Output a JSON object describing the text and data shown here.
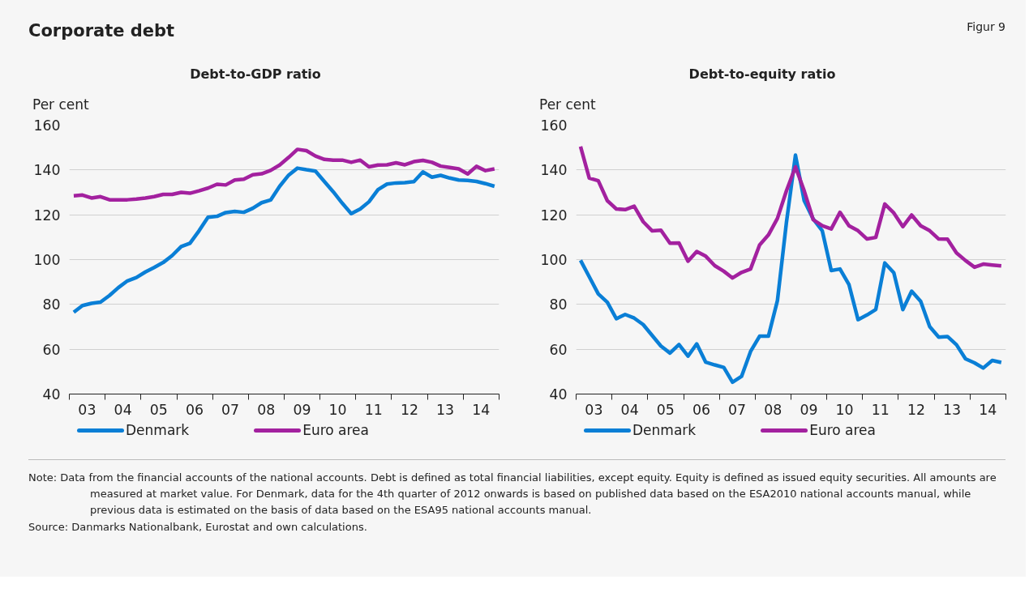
{
  "chart_data": [
    {
      "type": "line",
      "title": "Debt-to-GDP ratio",
      "ylabel": "Per cent",
      "x": [
        "2003-02-15",
        "2003-05-15",
        "2003-08-15",
        "2003-11-15",
        "2004-02-15",
        "2004-05-15",
        "2004-08-15",
        "2004-11-15",
        "2005-02-15",
        "2005-05-15",
        "2005-08-15",
        "2005-11-15",
        "2006-02-15",
        "2006-05-15",
        "2006-08-15",
        "2006-11-15",
        "2007-02-15",
        "2007-05-15",
        "2007-08-15",
        "2007-11-15",
        "2008-02-15",
        "2008-05-15",
        "2008-08-15",
        "2008-11-15",
        "2009-02-15",
        "2009-05-15",
        "2009-08-15",
        "2009-11-15",
        "2010-02-15",
        "2010-05-15",
        "2010-08-15",
        "2010-11-15",
        "2011-02-15",
        "2011-05-15",
        "2011-08-15",
        "2011-11-15",
        "2012-02-15",
        "2012-05-15",
        "2012-08-15",
        "2012-11-15",
        "2013-02-15",
        "2013-05-15",
        "2013-08-15",
        "2013-11-15",
        "2014-02-15",
        "2014-05-15",
        "2014-08-15",
        "2014-11-15"
      ],
      "series": [
        {
          "name": "Denmark",
          "color": "#0a7fd6",
          "values": [
            76.5,
            79.5,
            80.5,
            81,
            84,
            87.5,
            90.5,
            92,
            94.5,
            96.5,
            98.7,
            101.8,
            105.8,
            107.3,
            112.8,
            118.9,
            119.3,
            121,
            121.5,
            121.1,
            122.9,
            125.4,
            126.6,
            132.7,
            137.7,
            140.8,
            140.1,
            139.5,
            134.8,
            130.3,
            125.2,
            120.5,
            122.6,
            125.8,
            131.2,
            133.7,
            134.2,
            134.3,
            134.8,
            139.1,
            136.8,
            137.6,
            136.4,
            135.5,
            135.3,
            134.9,
            133.9,
            132.7
          ]
        },
        {
          "name": "Euro area",
          "color": "#a3219f",
          "values": [
            128.5,
            128.8,
            127.5,
            128.1,
            126.7,
            126.7,
            126.7,
            127,
            127.5,
            128.1,
            129.1,
            129.1,
            130,
            129.6,
            130.7,
            131.9,
            133.6,
            133.3,
            135.5,
            135.9,
            137.9,
            138.3,
            139.8,
            142.2,
            145.6,
            149.2,
            148.6,
            146.2,
            144.7,
            144.4,
            144.4,
            143.4,
            144.4,
            141.4,
            142.2,
            142.3,
            143.2,
            142.3,
            143.7,
            144.3,
            143.4,
            141.7,
            141.1,
            140.5,
            138.2,
            141.6,
            139.7,
            140.5
          ]
        }
      ],
      "xlim": [
        "2003-01-01",
        "2015-01-01"
      ],
      "xticks": [
        {
          "value": "2003-01-01",
          "label": null
        },
        {
          "value": "2003-07-01",
          "label": "03"
        },
        {
          "value": "2004-01-01",
          "label": null
        },
        {
          "value": "2004-07-01",
          "label": "04"
        },
        {
          "value": "2005-01-01",
          "label": null
        },
        {
          "value": "2005-07-01",
          "label": "05"
        },
        {
          "value": "2006-01-01",
          "label": null
        },
        {
          "value": "2006-07-01",
          "label": "06"
        },
        {
          "value": "2007-01-01",
          "label": null
        },
        {
          "value": "2007-07-01",
          "label": "07"
        },
        {
          "value": "2008-01-01",
          "label": null
        },
        {
          "value": "2008-07-01",
          "label": "08"
        },
        {
          "value": "2009-01-01",
          "label": null
        },
        {
          "value": "2009-07-01",
          "label": "09"
        },
        {
          "value": "2010-01-01",
          "label": null
        },
        {
          "value": "2010-07-01",
          "label": "10"
        },
        {
          "value": "2011-01-01",
          "label": null
        },
        {
          "value": "2011-07-01",
          "label": "11"
        },
        {
          "value": "2012-01-01",
          "label": null
        },
        {
          "value": "2012-07-01",
          "label": "12"
        },
        {
          "value": "2013-01-01",
          "label": null
        },
        {
          "value": "2013-07-01",
          "label": "13"
        },
        {
          "value": "2014-01-01",
          "label": null
        },
        {
          "value": "2014-07-01",
          "label": "14"
        },
        {
          "value": "2015-01-01",
          "label": null
        }
      ],
      "ylim": [
        40,
        160
      ],
      "yticks": [
        40,
        60,
        80,
        100,
        120,
        140,
        160
      ],
      "grid": "y",
      "legend": "bottom",
      "line_style": "solid"
    },
    {
      "type": "line",
      "title": "Debt-to-equity ratio",
      "ylabel": "Per cent",
      "x": [
        "2003-02-15",
        "2003-05-15",
        "2003-08-15",
        "2003-11-15",
        "2004-02-15",
        "2004-05-15",
        "2004-08-15",
        "2004-11-15",
        "2005-02-15",
        "2005-05-15",
        "2005-08-15",
        "2005-11-15",
        "2006-02-15",
        "2006-05-15",
        "2006-08-15",
        "2006-11-15",
        "2007-02-15",
        "2007-05-15",
        "2007-08-15",
        "2007-11-15",
        "2008-02-15",
        "2008-05-15",
        "2008-08-15",
        "2008-11-15",
        "2009-02-15",
        "2009-05-15",
        "2009-08-15",
        "2009-11-15",
        "2010-02-15",
        "2010-05-15",
        "2010-08-15",
        "2010-11-15",
        "2011-02-15",
        "2011-05-15",
        "2011-08-15",
        "2011-11-15",
        "2012-02-15",
        "2012-05-15",
        "2012-08-15",
        "2012-11-15",
        "2013-02-15",
        "2013-05-15",
        "2013-08-15",
        "2013-11-15",
        "2014-02-15",
        "2014-05-15",
        "2014-08-15",
        "2014-11-15"
      ],
      "series": [
        {
          "name": "Denmark",
          "color": "#0a7fd6",
          "values": [
            99.7,
            92.3,
            84.7,
            81,
            73.6,
            75.5,
            73.9,
            71,
            66.1,
            61.4,
            58.3,
            62.1,
            56.9,
            62.4,
            54.2,
            53,
            51.9,
            45.3,
            47.9,
            59,
            65.8,
            65.8,
            81.7,
            116.6,
            146.6,
            126.3,
            118.1,
            112.9,
            95.1,
            95.8,
            88.8,
            73.2,
            75.3,
            77.7,
            98.5,
            94.1,
            77.7,
            85.9,
            81.4,
            70.1,
            65.4,
            65.7,
            62,
            55.7,
            53.9,
            51.6,
            55,
            54.1
          ]
        },
        {
          "name": "Euro area",
          "color": "#a3219f",
          "values": [
            150.5,
            136.4,
            135.2,
            126.3,
            122.6,
            122.3,
            123.8,
            116.9,
            112.8,
            113.1,
            107.3,
            107.4,
            99.3,
            103.6,
            101.5,
            97.3,
            94.8,
            91.8,
            94.3,
            95.8,
            106.5,
            111,
            118.4,
            130.7,
            141.4,
            130.7,
            117.8,
            115.1,
            113.7,
            121.1,
            115.1,
            112.9,
            109.2,
            109.9,
            124.8,
            120.8,
            114.7,
            119.9,
            115.1,
            112.9,
            109.2,
            109.1,
            103,
            99.6,
            96.6,
            98,
            97.6,
            97.2
          ]
        }
      ],
      "xlim": [
        "2003-01-01",
        "2015-01-01"
      ],
      "xticks": [
        {
          "value": "2003-01-01",
          "label": null
        },
        {
          "value": "2003-07-01",
          "label": "03"
        },
        {
          "value": "2004-01-01",
          "label": null
        },
        {
          "value": "2004-07-01",
          "label": "04"
        },
        {
          "value": "2005-01-01",
          "label": null
        },
        {
          "value": "2005-07-01",
          "label": "05"
        },
        {
          "value": "2006-01-01",
          "label": null
        },
        {
          "value": "2006-07-01",
          "label": "06"
        },
        {
          "value": "2007-01-01",
          "label": null
        },
        {
          "value": "2007-07-01",
          "label": "07"
        },
        {
          "value": "2008-01-01",
          "label": null
        },
        {
          "value": "2008-07-01",
          "label": "08"
        },
        {
          "value": "2009-01-01",
          "label": null
        },
        {
          "value": "2009-07-01",
          "label": "09"
        },
        {
          "value": "2010-01-01",
          "label": null
        },
        {
          "value": "2010-07-01",
          "label": "10"
        },
        {
          "value": "2011-01-01",
          "label": null
        },
        {
          "value": "2011-07-01",
          "label": "11"
        },
        {
          "value": "2012-01-01",
          "label": null
        },
        {
          "value": "2012-07-01",
          "label": "12"
        },
        {
          "value": "2013-01-01",
          "label": null
        },
        {
          "value": "2013-07-01",
          "label": "13"
        },
        {
          "value": "2014-01-01",
          "label": null
        },
        {
          "value": "2014-07-01",
          "label": "14"
        },
        {
          "value": "2015-01-01",
          "label": null
        }
      ],
      "ylim": [
        40,
        160
      ],
      "yticks": [
        40,
        60,
        80,
        100,
        120,
        140,
        160
      ],
      "grid": "y",
      "legend": "bottom",
      "line_style": "solid"
    },
    {
      "type": "other",
      "title": "Corporate debt",
      "annotations": [
        "Figur 9",
        "Note: Data from the financial accounts of the national accounts. Debt is defined as total financial liabilities, except equity. Equity is defined as issued equity securities. All amounts are measured at market value. For Denmark, data for the 4th quarter of 2012 onwards is based on published data based on the ESA2010 national accounts manual, while previous data is estimated on the basis of data based on the ESA95 national accounts manual.",
        "Source: Danmarks Nationalbank, Eurostat and own calculations."
      ]
    }
  ]
}
